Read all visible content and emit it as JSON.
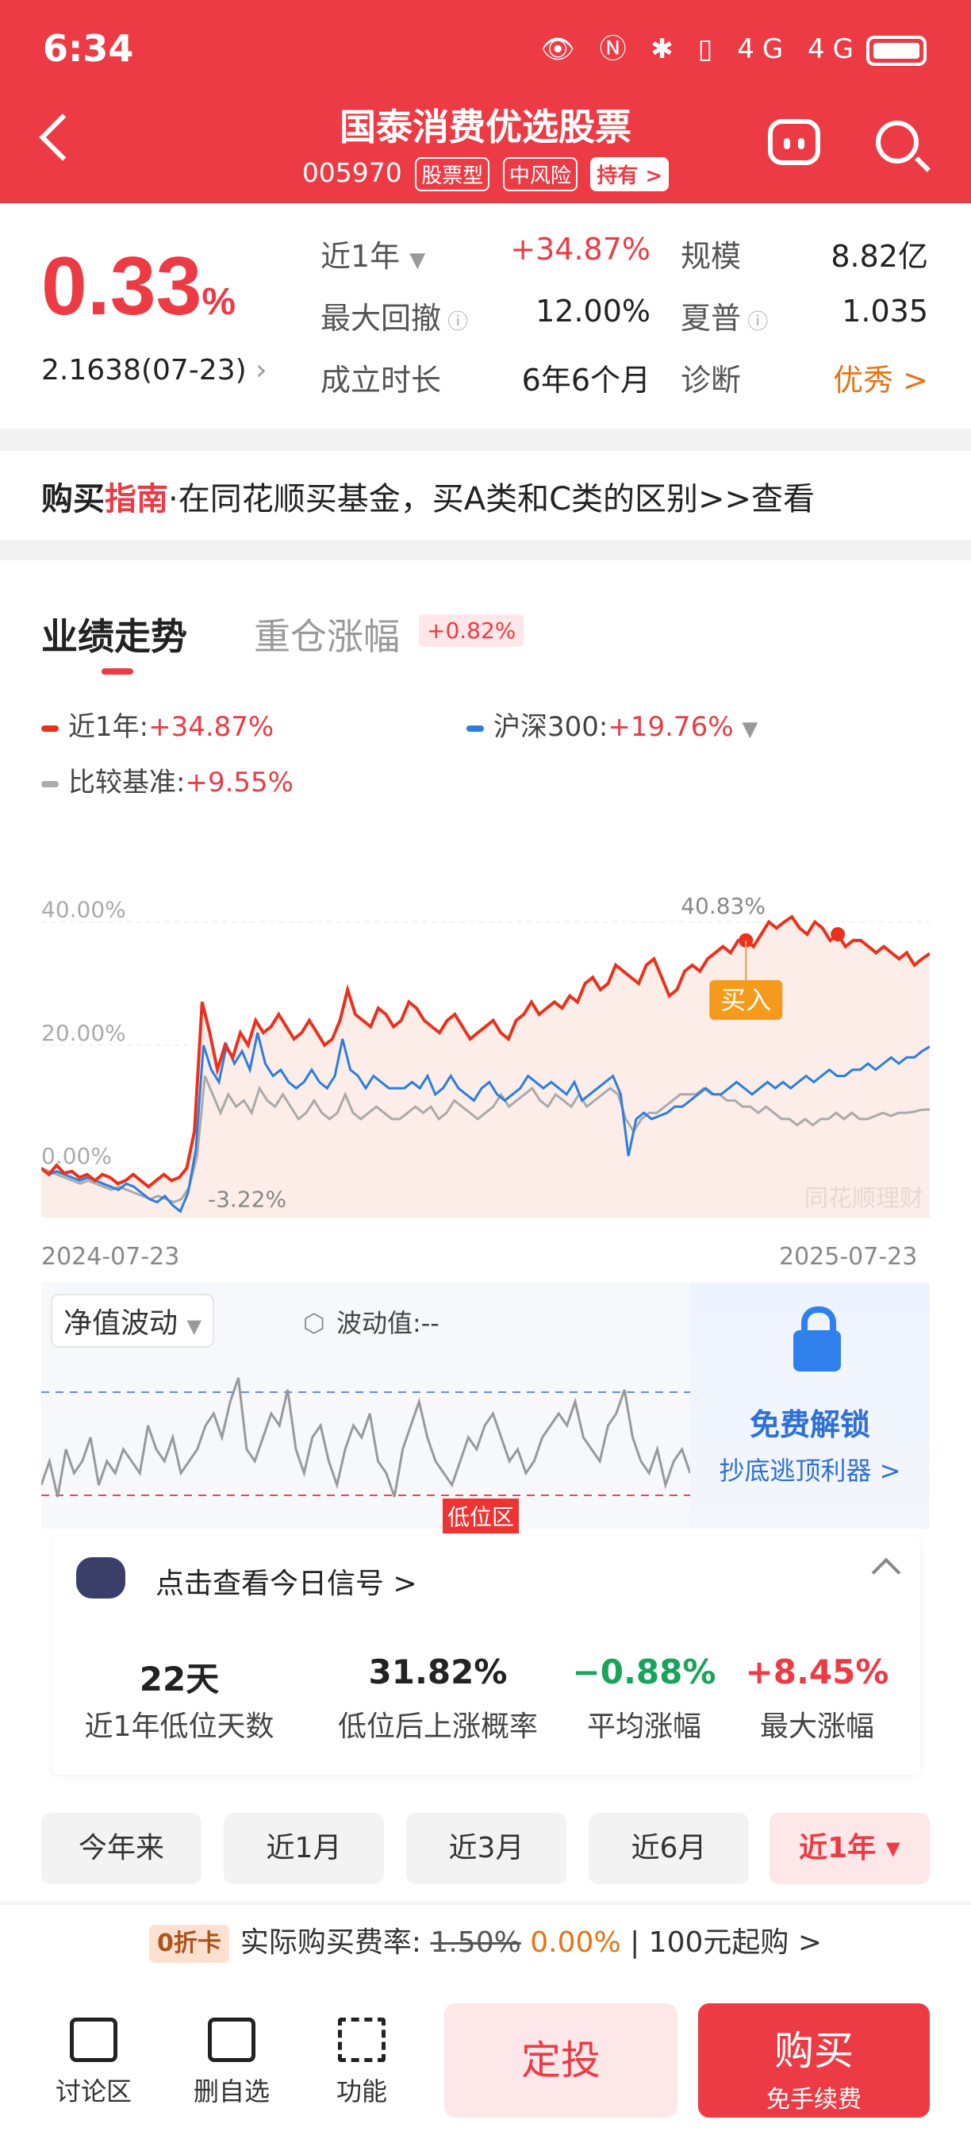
{
  "status_bar": {
    "time": "6:34",
    "icons": "👁 Ⓝ ✱ ▯ 4G 4G"
  },
  "header": {
    "title": "国泰消费优选股票",
    "code": "005970",
    "tags": [
      "股票型",
      "中风险",
      "持有 >"
    ]
  },
  "summary": {
    "daily_rate": "0.33",
    "daily_rate_unit": "%",
    "nav": "2.1638(07-23)",
    "rows": [
      {
        "label": "近1年",
        "value": "+34.87%",
        "label2": "规模",
        "value2": "8.82亿"
      },
      {
        "label": "最大回撤",
        "value": "12.00%",
        "label2": "夏普",
        "value2": "1.035"
      },
      {
        "label": "成立时长",
        "value": "6年6个月",
        "label2": "诊断",
        "value2": "优秀 >"
      }
    ]
  },
  "guide": {
    "strong": "购买",
    "highlight": "指南",
    "text": "·在同花顺买基金，买A类和C类的区别>>查看"
  },
  "performance": {
    "tabs": [
      {
        "label": "业绩走势"
      },
      {
        "label": "重仓涨幅"
      }
    ],
    "tab_badge": "+0.82%",
    "legend": [
      {
        "name": "近1年",
        "value": "+34.87%",
        "color": "#e8321e"
      },
      {
        "name": "沪深300",
        "value": "+19.76%",
        "color": "#2a7ee0"
      },
      {
        "name": "比较基准",
        "value": "+9.55%",
        "color": "#aaaaaa"
      }
    ],
    "watermark": "同花顺理财",
    "buy_marker": "买入",
    "max_label": "40.83%",
    "min_label": "-3.22%"
  },
  "chart_data": {
    "type": "line",
    "x_range": [
      "2024-07-23",
      "2025-07-23"
    ],
    "y_ticks": [
      "40.00%",
      "20.00%",
      "0.00%"
    ],
    "ylim": [
      -8,
      50
    ],
    "series": [
      {
        "name": "近1年",
        "color": "#e8321e",
        "values": [
          0,
          -1,
          0.5,
          -0.8,
          -0.5,
          -1.5,
          -1,
          -2,
          -1,
          -1.5,
          -2.5,
          -2,
          -1,
          -2,
          -3,
          -2,
          -1,
          -2,
          -1.5,
          0,
          6,
          27,
          22,
          16,
          20,
          18,
          22,
          20,
          24,
          22,
          23,
          25,
          23,
          21,
          22,
          24,
          22,
          20,
          21,
          24,
          29,
          25,
          24,
          23,
          26,
          25,
          23,
          24,
          27,
          26,
          24,
          23,
          22,
          24,
          25,
          23,
          21,
          22,
          23,
          24,
          22,
          21,
          24,
          25,
          27,
          25,
          26,
          27,
          26,
          28,
          27,
          30,
          31,
          29,
          30,
          33,
          32,
          31,
          30,
          33,
          34,
          31,
          28,
          29,
          32,
          33,
          32,
          34,
          35,
          36,
          35,
          37,
          37,
          36,
          38,
          40,
          39,
          40,
          40.83,
          39,
          38,
          40,
          39,
          37,
          38,
          36,
          37,
          37,
          36,
          35,
          36,
          35,
          34,
          35,
          33,
          34,
          34.87
        ]
      },
      {
        "name": "沪深300",
        "color": "#2a7ee0",
        "values": [
          0,
          -1,
          -0.5,
          -1,
          -1.5,
          -2,
          -1.5,
          -2,
          -2.5,
          -3,
          -3.5,
          -2.5,
          -3,
          -4,
          -5,
          -5.5,
          -4.5,
          -6,
          -7,
          -4,
          3,
          20,
          16,
          14,
          20,
          17,
          19,
          16,
          22,
          17,
          15,
          16,
          14,
          13,
          14,
          16,
          14,
          13,
          15,
          21,
          16,
          15,
          13,
          15,
          14,
          13,
          13,
          13,
          14,
          13,
          15,
          12,
          13,
          15,
          13,
          12,
          11,
          13,
          14,
          12,
          11,
          12,
          13,
          15,
          14,
          13,
          14,
          13,
          12,
          14,
          11,
          12,
          13,
          14,
          15,
          12,
          2,
          8,
          9,
          8,
          8.5,
          9,
          10,
          10,
          11,
          12,
          13,
          12,
          12,
          13,
          14,
          13,
          12,
          13,
          14,
          13,
          14,
          13,
          14,
          15,
          14,
          15,
          16,
          15,
          15,
          16,
          16,
          17,
          16,
          17,
          18,
          17,
          18,
          18,
          19,
          19.76
        ]
      },
      {
        "name": "比较基准",
        "color": "#aaaaaa",
        "values": [
          0,
          -0.5,
          -1,
          -1.5,
          -2,
          -2.5,
          -2,
          -2.5,
          -3,
          -3.5,
          -3,
          -3.5,
          -4,
          -4.5,
          -5,
          -4.5,
          -5,
          -5.5,
          -5,
          -3,
          2,
          15,
          12,
          9,
          12,
          10,
          11,
          9,
          13,
          11,
          10,
          12,
          10,
          8,
          9,
          11,
          9,
          8,
          9,
          12,
          9,
          8,
          9,
          10,
          9,
          8,
          8,
          9,
          10,
          9,
          10,
          8,
          9,
          11,
          10,
          9,
          8,
          9,
          10,
          12,
          10,
          11,
          12,
          13,
          11,
          10,
          12,
          11,
          10,
          12,
          10,
          11,
          12,
          13,
          12,
          8,
          6,
          8,
          9,
          9,
          10,
          11,
          12,
          12,
          12,
          13,
          12,
          12,
          11,
          11,
          10,
          10,
          9,
          10,
          9,
          8,
          8,
          7,
          8,
          7,
          8,
          8,
          9,
          8,
          9,
          8,
          8,
          8.5,
          9,
          8.5,
          9,
          9,
          9.2,
          9.5,
          9.55
        ]
      }
    ]
  },
  "volatility": {
    "select": "净值波动",
    "label": "波动值:--",
    "low_zone": "低位区",
    "unlock_title": "免费解锁",
    "unlock_sub": "抄底逃顶利器 >",
    "values": [
      3,
      5,
      2,
      6,
      4,
      5,
      7,
      3,
      5,
      4,
      6,
      5,
      4,
      8,
      6,
      5,
      7,
      4,
      5,
      6,
      8,
      9,
      7,
      10,
      12,
      6,
      5,
      7,
      9,
      8,
      11,
      6,
      4,
      7,
      8,
      5,
      3,
      6,
      8,
      7,
      9,
      5,
      4,
      2,
      6,
      8,
      10,
      7,
      5,
      4,
      3,
      5,
      7,
      6,
      8,
      9,
      7,
      5,
      6,
      4,
      5,
      7,
      8,
      9,
      8,
      10,
      7,
      6,
      5,
      8,
      9,
      11,
      7,
      5,
      4,
      6,
      3,
      5,
      6,
      4
    ]
  },
  "signal": {
    "title": "点击查看今日信号 >",
    "stats": [
      {
        "value": "22天",
        "label": "近1年低位天数"
      },
      {
        "value": "31.82%",
        "label": "低位后上涨概率"
      },
      {
        "value": "−0.88%",
        "label": "平均涨幅"
      },
      {
        "value": "+8.45%",
        "label": "最大涨幅"
      }
    ]
  },
  "periods": [
    {
      "label": "今年来"
    },
    {
      "label": "近1月"
    },
    {
      "label": "近3月"
    },
    {
      "label": "近6月"
    },
    {
      "label": "近1年 ▾"
    }
  ],
  "fee": {
    "badge": "0折卡",
    "label": "实际购买费率:",
    "old": "1.50%",
    "new": "0.00%",
    "min": "| 100元起购 >"
  },
  "bottom": {
    "items": [
      {
        "label": "讨论区"
      },
      {
        "label": "删自选"
      },
      {
        "label": "功能"
      }
    ],
    "dingtou": "定投",
    "buy": "购买",
    "buy_sub": "免手续费"
  }
}
